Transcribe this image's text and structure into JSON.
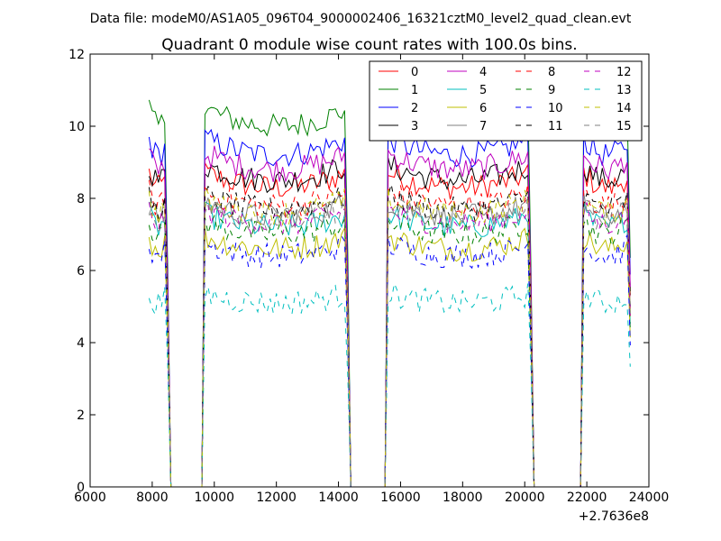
{
  "header": {
    "data_file_label": "Data file: modeM0/AS1A05_096T04_9000002406_16321cztM0_level2_quad_clean.evt"
  },
  "chart_data": {
    "type": "line",
    "title": "Quadrant 0 module wise count rates with 100.0s bins.",
    "xlabel": "",
    "ylabel": "",
    "x_offset_label": "+2.7636e8",
    "xlim": [
      6000,
      24000
    ],
    "ylim": [
      0,
      12
    ],
    "xticks": [
      6000,
      8000,
      10000,
      12000,
      14000,
      16000,
      18000,
      20000,
      22000,
      24000
    ],
    "yticks": [
      0,
      2,
      4,
      6,
      8,
      10,
      12
    ],
    "xtick_labels": [
      "6000",
      "8000",
      "10000",
      "12000",
      "14000",
      "16000",
      "18000",
      "20000",
      "22000",
      "24000"
    ],
    "ytick_labels": [
      "0",
      "2",
      "4",
      "6",
      "8",
      "10",
      "12"
    ],
    "grid": false,
    "legend_position": "top-right",
    "bin_seconds": 100,
    "segments": [
      {
        "start": 7900,
        "end": 8500
      },
      {
        "start": 9700,
        "end": 14300
      },
      {
        "start": 15600,
        "end": 20200
      },
      {
        "start": 21900,
        "end": 23400
      }
    ],
    "series": [
      {
        "name": "0",
        "color": "#ff0000",
        "dash": "solid",
        "level": 8.3
      },
      {
        "name": "1",
        "color": "#008000",
        "dash": "solid",
        "level": 10.0
      },
      {
        "name": "2",
        "color": "#0000ff",
        "dash": "solid",
        "level": 9.2
      },
      {
        "name": "3",
        "color": "#000000",
        "dash": "solid",
        "level": 8.5
      },
      {
        "name": "4",
        "color": "#bf00bf",
        "dash": "solid",
        "level": 8.8
      },
      {
        "name": "5",
        "color": "#00bfbf",
        "dash": "solid",
        "level": 7.2
      },
      {
        "name": "6",
        "color": "#bfbf00",
        "dash": "solid",
        "level": 6.6
      },
      {
        "name": "7",
        "color": "#808080",
        "dash": "solid",
        "level": 7.5
      },
      {
        "name": "8",
        "color": "#ff0000",
        "dash": "dashed",
        "level": 7.8
      },
      {
        "name": "9",
        "color": "#008000",
        "dash": "dashed",
        "level": 7.0
      },
      {
        "name": "10",
        "color": "#0000ff",
        "dash": "dashed",
        "level": 6.4
      },
      {
        "name": "11",
        "color": "#000000",
        "dash": "dashed",
        "level": 7.7
      },
      {
        "name": "12",
        "color": "#bf00bf",
        "dash": "dashed",
        "level": 7.3
      },
      {
        "name": "13",
        "color": "#00bfbf",
        "dash": "dashed",
        "level": 5.1
      },
      {
        "name": "14",
        "color": "#bfbf00",
        "dash": "dashed",
        "level": 7.6
      },
      {
        "name": "15",
        "color": "#808080",
        "dash": "dashed",
        "level": 7.4
      }
    ]
  }
}
